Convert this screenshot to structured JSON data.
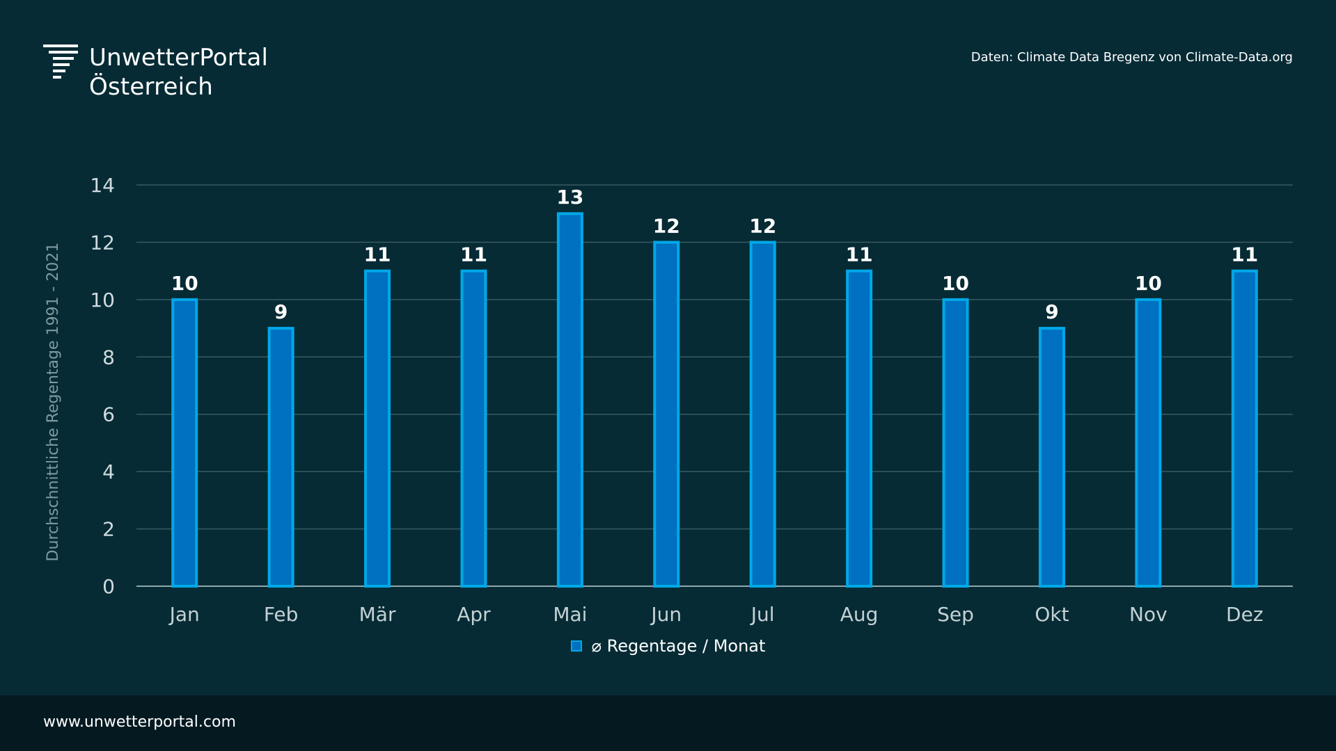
{
  "brand": {
    "line1": "UnwetterPortal",
    "line2": "Österreich",
    "icon": "storm-lines-icon"
  },
  "source": "Daten: Climate Data Bregenz von Climate-Data.org",
  "footer": {
    "url": "www.unwetterportal.com"
  },
  "colors": {
    "background": "#062b35",
    "bar_fill": "#0070c0",
    "bar_border": "#00a8e8",
    "grid": "#3a5a62",
    "footer_bg": "#051920"
  },
  "chart_data": {
    "type": "bar",
    "title": "",
    "categories": [
      "Jan",
      "Feb",
      "Mär",
      "Apr",
      "Mai",
      "Jun",
      "Jul",
      "Aug",
      "Sep",
      "Okt",
      "Nov",
      "Dez"
    ],
    "series": [
      {
        "name": "⌀ Regentage / Monat",
        "values": [
          10,
          9,
          11,
          11,
          13,
          12,
          12,
          11,
          10,
          9,
          10,
          11
        ]
      }
    ],
    "ylabel": "Durchschnittliche Regentage 1991 - 2021",
    "xlabel": "",
    "ylim": [
      0,
      14
    ],
    "yticks": [
      0,
      2,
      4,
      6,
      8,
      10,
      12,
      14
    ],
    "grid": true,
    "legend": "bottom-center"
  }
}
